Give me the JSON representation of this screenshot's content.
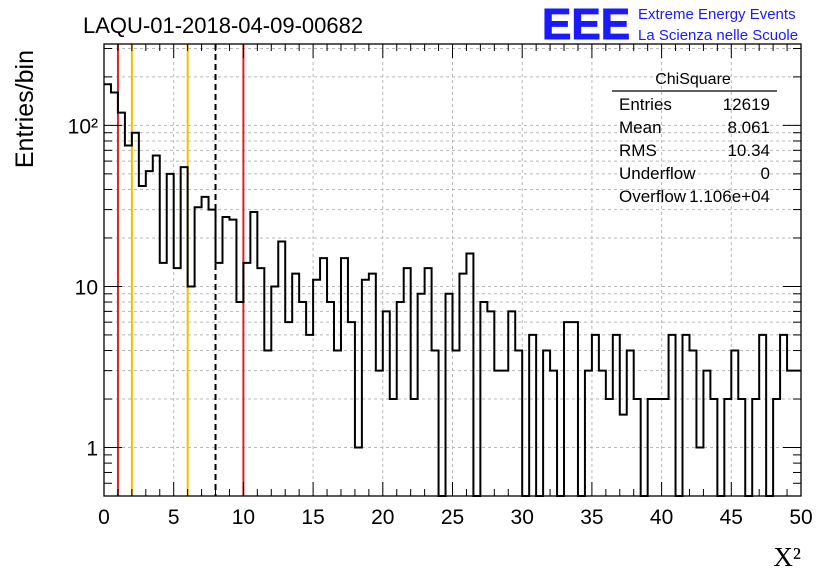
{
  "header": {
    "run_id": "LAQU-01-2018-04-09-00682",
    "logo_text": "EEE",
    "logo_line1": "Extreme Energy Events",
    "logo_line2": "La Scienza nelle Scuole",
    "logo_color": "#1a1aff"
  },
  "stats_box": {
    "title": "ChiSquare",
    "rows": [
      {
        "label": "Entries",
        "value": "12619"
      },
      {
        "label": "Mean",
        "value": "8.061"
      },
      {
        "label": "RMS",
        "value": "10.34"
      },
      {
        "label": "Underflow",
        "value": "0"
      },
      {
        "label": "Overflow",
        "value": "1.106e+04"
      }
    ]
  },
  "chart_data": {
    "type": "histogram",
    "ylabel": "Entries/bin",
    "xlabel": "X²",
    "xlim": [
      0,
      50
    ],
    "ylim": [
      0.5,
      320
    ],
    "y_scale": "log",
    "grid": true,
    "bin_width": 0.5,
    "x_ticks": [
      0,
      5,
      10,
      15,
      20,
      25,
      30,
      35,
      40,
      45,
      50
    ],
    "x_tick_labels": [
      "0",
      "5",
      "10",
      "15",
      "20",
      "25",
      "30",
      "35",
      "40",
      "45",
      "50"
    ],
    "y_ticks": [
      1,
      10,
      100
    ],
    "y_tick_labels": [
      "1",
      "10",
      "10²"
    ],
    "values": [
      180,
      160,
      120,
      75,
      90,
      42,
      52,
      65,
      14,
      50,
      13,
      55,
      10,
      31,
      36,
      30,
      14,
      27,
      26,
      8,
      14,
      29,
      13,
      4,
      10,
      19,
      6,
      12,
      8,
      5,
      11,
      15,
      8,
      4,
      15,
      6,
      1,
      11,
      12,
      3,
      7,
      2,
      8,
      13,
      2,
      9,
      13,
      4,
      0,
      9,
      4,
      12,
      16,
      0,
      8,
      7,
      3,
      3,
      7,
      4,
      0,
      5,
      0,
      4,
      3,
      0,
      6,
      6,
      0,
      3,
      5,
      3,
      2,
      5,
      1.6,
      4,
      2,
      0,
      2,
      2,
      2,
      5,
      0,
      5,
      4,
      1,
      3,
      2,
      0,
      2,
      4,
      2,
      0,
      2,
      5,
      0,
      2,
      5,
      3,
      3
    ],
    "reference_lines": [
      {
        "x": 1,
        "color": "#dd2222",
        "style": "solid"
      },
      {
        "x": 2,
        "color": "#f0c000",
        "style": "solid"
      },
      {
        "x": 6,
        "color": "#f0c000",
        "style": "solid"
      },
      {
        "x": 8,
        "color": "#000000",
        "style": "dashed"
      },
      {
        "x": 10,
        "color": "#dd2222",
        "style": "solid"
      }
    ]
  }
}
